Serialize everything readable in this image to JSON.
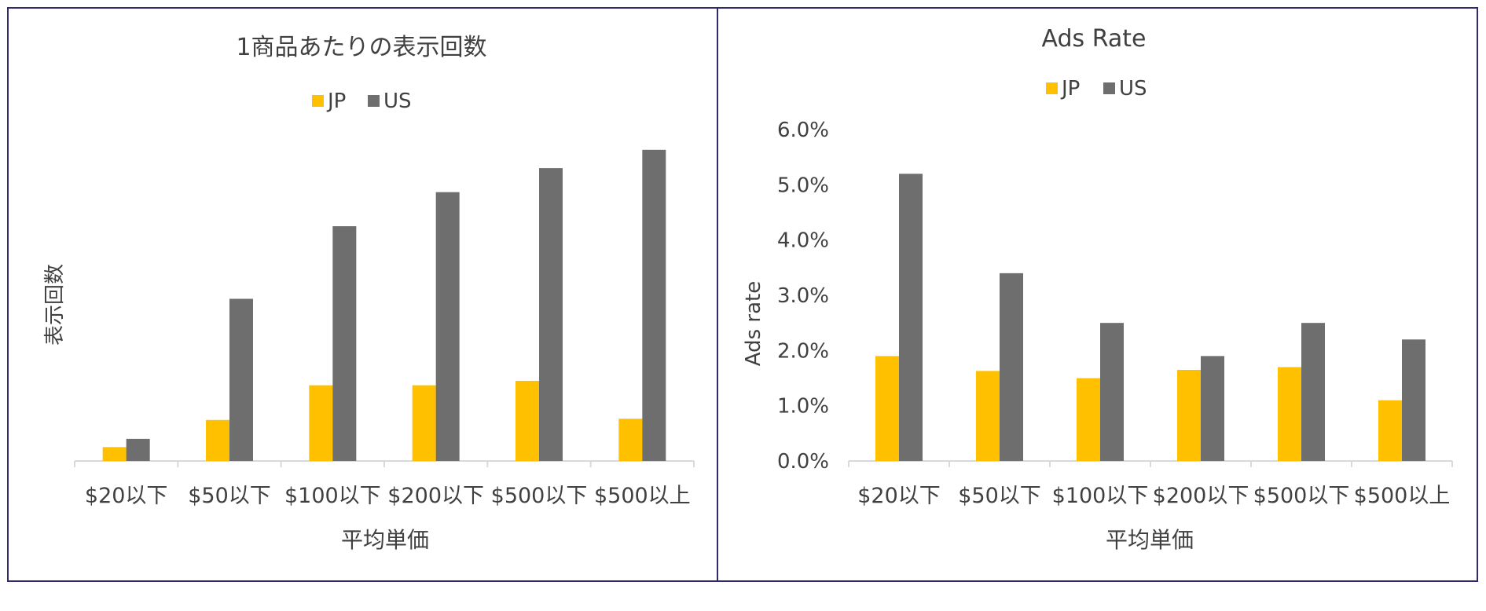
{
  "colors": {
    "jp": "#FFC000",
    "us": "#6E6E6E",
    "frame": "#2E2A6B",
    "axis": "#D9D9D9",
    "text": "#404040"
  },
  "chart_data": [
    {
      "type": "bar",
      "title": "1商品あたりの表示回数",
      "xlabel": "平均単価",
      "ylabel": "表示回数",
      "categories": [
        "$20以下",
        "$50以下",
        "$100以下",
        "$200以下",
        "$500以下",
        "$500以上"
      ],
      "series": [
        {
          "name": "JP",
          "values": [
            2.2,
            6.5,
            12.0,
            12.0,
            12.7,
            6.7
          ]
        },
        {
          "name": "US",
          "values": [
            3.5,
            25.7,
            37.2,
            42.6,
            46.4,
            49.3
          ]
        }
      ],
      "ylim": [
        0,
        55
      ],
      "y_ticks_visible": false,
      "legend_position": "top",
      "grid": false
    },
    {
      "type": "bar",
      "title": "Ads Rate",
      "xlabel": "平均単価",
      "ylabel": "Ads rate",
      "categories": [
        "$20以下",
        "$50以下",
        "$100以下",
        "$200以下",
        "$500以下",
        "$500以上"
      ],
      "series": [
        {
          "name": "JP",
          "values": [
            0.019,
            0.0163,
            0.015,
            0.0165,
            0.017,
            0.011
          ]
        },
        {
          "name": "US",
          "values": [
            0.052,
            0.034,
            0.025,
            0.019,
            0.025,
            0.022
          ]
        }
      ],
      "ylim": [
        0,
        0.06
      ],
      "y_ticks": [
        "0.0%",
        "1.0%",
        "2.0%",
        "3.0%",
        "4.0%",
        "5.0%",
        "6.0%"
      ],
      "legend_position": "top",
      "grid": false
    }
  ]
}
